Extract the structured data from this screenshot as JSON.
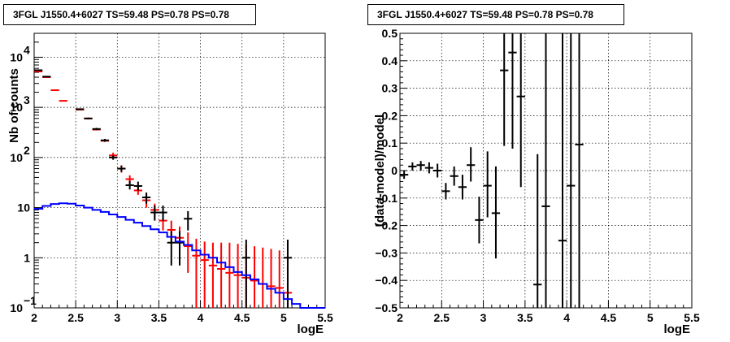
{
  "chart_data": [
    {
      "type": "line",
      "title": "3FGL J1550.4+6027 TS=59.48 PS=0.78 PS=0.78",
      "xlabel": "logE",
      "ylabel": "Nb of counts",
      "xlim": [
        2,
        5.5
      ],
      "ylim": [
        0.1,
        30000
      ],
      "yscale": "log",
      "grid": true,
      "x_ticks": [
        2,
        2.5,
        3,
        3.5,
        4,
        4.5,
        5,
        5.5
      ],
      "x_tick_labels": [
        "2",
        "2.5",
        "3",
        "3.5",
        "4",
        "4.5",
        "5",
        "5.5"
      ],
      "y_ticks": [
        0.1,
        1,
        10,
        100,
        1000,
        10000
      ],
      "series": [
        {
          "color": "#ff0000",
          "style": "errorbar",
          "bin_half_width": 0.05,
          "points": [
            {
              "x": 2.05,
              "y": 5200,
              "lo": 5200,
              "hi": 5200
            },
            {
              "x": 2.15,
              "y": 4000,
              "lo": 4000,
              "hi": 4000
            },
            {
              "x": 2.25,
              "y": 2200,
              "lo": 2200,
              "hi": 2200
            },
            {
              "x": 2.35,
              "y": 1350,
              "lo": 1350,
              "hi": 1350
            },
            {
              "x": 2.55,
              "y": 900,
              "lo": 900,
              "hi": 900
            },
            {
              "x": 2.65,
              "y": 600,
              "lo": 600,
              "hi": 600
            },
            {
              "x": 2.75,
              "y": 360,
              "lo": 360,
              "hi": 360
            },
            {
              "x": 2.85,
              "y": 215,
              "lo": 215,
              "hi": 215
            },
            {
              "x": 2.95,
              "y": 110,
              "lo": 95,
              "hi": 125
            },
            {
              "x": 3.05,
              "y": 60,
              "lo": 50,
              "hi": 70
            },
            {
              "x": 3.15,
              "y": 37,
              "lo": 31,
              "hi": 44
            },
            {
              "x": 3.25,
              "y": 22,
              "lo": 18,
              "hi": 27
            },
            {
              "x": 3.35,
              "y": 14,
              "lo": 10,
              "hi": 18
            },
            {
              "x": 3.45,
              "y": 9,
              "lo": 6,
              "hi": 12
            },
            {
              "x": 3.55,
              "y": 5.5,
              "lo": 3.5,
              "hi": 8
            },
            {
              "x": 3.65,
              "y": 3.6,
              "lo": 2,
              "hi": 5.5
            },
            {
              "x": 3.75,
              "y": 2.5,
              "lo": 1.2,
              "hi": 4.2
            },
            {
              "x": 3.85,
              "y": 1.7,
              "lo": 0.5,
              "hi": 3.2
            },
            {
              "x": 3.95,
              "y": 1.1,
              "lo": 0.1,
              "hi": 2.4
            },
            {
              "x": 4.05,
              "y": 0.9,
              "lo": 0.1,
              "hi": 2.1
            },
            {
              "x": 4.15,
              "y": 0.7,
              "lo": 0.1,
              "hi": 2.0
            },
            {
              "x": 4.25,
              "y": 0.6,
              "lo": 0.1,
              "hi": 2.0
            },
            {
              "x": 4.35,
              "y": 0.5,
              "lo": 0.1,
              "hi": 2.0
            },
            {
              "x": 4.45,
              "y": 0.45,
              "lo": 0.1,
              "hi": 1.9
            },
            {
              "x": 4.55,
              "y": 0.4,
              "lo": 0.1,
              "hi": 1.8
            },
            {
              "x": 4.65,
              "y": 0.35,
              "lo": 0.1,
              "hi": 1.7
            },
            {
              "x": 4.75,
              "y": 0.3,
              "lo": 0.1,
              "hi": 1.6
            },
            {
              "x": 4.85,
              "y": 0.27,
              "lo": 0.1,
              "hi": 1.5
            },
            {
              "x": 4.95,
              "y": 0.25,
              "lo": 0.1,
              "hi": 1.4
            },
            {
              "x": 5.05,
              "y": 0.2,
              "lo": 0.1,
              "hi": 1.0
            }
          ]
        },
        {
          "color": "#000000",
          "style": "errorbar",
          "bin_half_width": 0.05,
          "points": [
            {
              "x": 2.05,
              "y": 5500,
              "lo": 5400,
              "hi": 5600
            },
            {
              "x": 2.15,
              "y": 4100,
              "lo": 4030,
              "hi": 4170
            },
            {
              "x": 2.55,
              "y": 920,
              "lo": 890,
              "hi": 950
            },
            {
              "x": 2.65,
              "y": 600,
              "lo": 575,
              "hi": 625
            },
            {
              "x": 2.75,
              "y": 370,
              "lo": 350,
              "hi": 390
            },
            {
              "x": 2.85,
              "y": 220,
              "lo": 205,
              "hi": 235
            },
            {
              "x": 2.95,
              "y": 100,
              "lo": 90,
              "hi": 110
            },
            {
              "x": 3.05,
              "y": 60,
              "lo": 52,
              "hi": 68
            },
            {
              "x": 3.15,
              "y": 28,
              "lo": 23,
              "hi": 34
            },
            {
              "x": 3.25,
              "y": 27,
              "lo": 22,
              "hi": 33
            },
            {
              "x": 3.35,
              "y": 16,
              "lo": 12,
              "hi": 20
            },
            {
              "x": 3.45,
              "y": 8,
              "lo": 5.5,
              "hi": 11
            },
            {
              "x": 3.55,
              "y": 8,
              "lo": 5.5,
              "hi": 11
            },
            {
              "x": 3.65,
              "y": 2,
              "lo": 0.7,
              "hi": 3.4
            },
            {
              "x": 3.75,
              "y": 2,
              "lo": 0.7,
              "hi": 3.4
            },
            {
              "x": 3.85,
              "y": 6,
              "lo": 3.5,
              "hi": 8.5
            },
            {
              "x": 4.55,
              "y": 1,
              "lo": 0.1,
              "hi": 2.3
            },
            {
              "x": 5.05,
              "y": 1,
              "lo": 0.1,
              "hi": 2.3
            }
          ]
        },
        {
          "color": "#0000ff",
          "style": "step",
          "bin_half_width": 0.05,
          "points": [
            {
              "x": 2.05,
              "y": 9.5
            },
            {
              "x": 2.15,
              "y": 10.8
            },
            {
              "x": 2.25,
              "y": 11.8
            },
            {
              "x": 2.35,
              "y": 12.2
            },
            {
              "x": 2.45,
              "y": 12.0
            },
            {
              "x": 2.55,
              "y": 11.0
            },
            {
              "x": 2.65,
              "y": 10.0
            },
            {
              "x": 2.75,
              "y": 9.0
            },
            {
              "x": 2.85,
              "y": 8.2
            },
            {
              "x": 2.95,
              "y": 7.3
            },
            {
              "x": 3.05,
              "y": 6.5
            },
            {
              "x": 3.15,
              "y": 5.7
            },
            {
              "x": 3.25,
              "y": 5.0
            },
            {
              "x": 3.35,
              "y": 4.3
            },
            {
              "x": 3.45,
              "y": 3.7
            },
            {
              "x": 3.55,
              "y": 3.2
            },
            {
              "x": 3.65,
              "y": 2.6
            },
            {
              "x": 3.75,
              "y": 2.1
            },
            {
              "x": 3.85,
              "y": 1.8
            },
            {
              "x": 3.95,
              "y": 1.4
            },
            {
              "x": 4.05,
              "y": 1.15
            },
            {
              "x": 4.15,
              "y": 1.0
            },
            {
              "x": 4.25,
              "y": 0.8
            },
            {
              "x": 4.35,
              "y": 0.65
            },
            {
              "x": 4.45,
              "y": 0.52
            },
            {
              "x": 4.55,
              "y": 0.45
            },
            {
              "x": 4.65,
              "y": 0.37
            },
            {
              "x": 4.75,
              "y": 0.3
            },
            {
              "x": 4.85,
              "y": 0.24
            },
            {
              "x": 4.95,
              "y": 0.2
            },
            {
              "x": 5.05,
              "y": 0.15
            },
            {
              "x": 5.15,
              "y": 0.12
            },
            {
              "x": 5.25,
              "y": 0.1
            },
            {
              "x": 5.35,
              "y": 0.1
            },
            {
              "x": 5.45,
              "y": 0.1
            }
          ]
        }
      ]
    },
    {
      "type": "scatter",
      "title": "3FGL J1550.4+6027 TS=59.48 PS=0.78 PS=0.78",
      "xlabel": "logE",
      "ylabel": "(data-model)/model",
      "xlim": [
        2,
        5.5
      ],
      "ylim": [
        -0.5,
        0.5
      ],
      "yscale": "linear",
      "grid": true,
      "x_ticks": [
        2,
        2.5,
        3,
        3.5,
        4,
        4.5,
        5,
        5.5
      ],
      "x_tick_labels": [
        "2",
        "2.5",
        "3",
        "3.5",
        "4",
        "4.5",
        "5",
        "5.5"
      ],
      "y_ticks": [
        -0.5,
        -0.4,
        -0.3,
        -0.2,
        -0.1,
        0,
        0.1,
        0.2,
        0.3,
        0.4,
        0.5
      ],
      "y_tick_labels": [
        "−0.5",
        "−0.4",
        "−0.3",
        "−0.2",
        "−0.1",
        "0",
        "0.1",
        "0.2",
        "0.3",
        "0.4",
        "0.5"
      ],
      "series": [
        {
          "color": "#000000",
          "style": "errorbar",
          "bin_half_width": 0.05,
          "points": [
            {
              "x": 2.05,
              "y": -0.015,
              "lo": -0.03,
              "hi": 0.0
            },
            {
              "x": 2.15,
              "y": 0.015,
              "lo": 0.0,
              "hi": 0.03
            },
            {
              "x": 2.25,
              "y": 0.02,
              "lo": 0.0,
              "hi": 0.035
            },
            {
              "x": 2.35,
              "y": 0.01,
              "lo": -0.01,
              "hi": 0.03
            },
            {
              "x": 2.45,
              "y": 0.0,
              "lo": -0.025,
              "hi": 0.025
            },
            {
              "x": 2.55,
              "y": -0.075,
              "lo": -0.105,
              "hi": -0.045
            },
            {
              "x": 2.65,
              "y": -0.02,
              "lo": -0.055,
              "hi": 0.015
            },
            {
              "x": 2.75,
              "y": -0.06,
              "lo": -0.105,
              "hi": -0.015
            },
            {
              "x": 2.85,
              "y": 0.02,
              "lo": -0.04,
              "hi": 0.085
            },
            {
              "x": 2.95,
              "y": -0.18,
              "lo": -0.265,
              "hi": -0.095
            },
            {
              "x": 3.05,
              "y": -0.055,
              "lo": -0.17,
              "hi": 0.07
            },
            {
              "x": 3.15,
              "y": -0.155,
              "lo": -0.32,
              "hi": 0.015
            },
            {
              "x": 3.25,
              "y": 0.365,
              "lo": 0.09,
              "hi": 0.5
            },
            {
              "x": 3.35,
              "y": 0.43,
              "lo": 0.08,
              "hi": 0.5
            },
            {
              "x": 3.45,
              "y": 0.27,
              "lo": -0.06,
              "hi": 0.5
            },
            {
              "x": 3.65,
              "y": -0.415,
              "lo": -0.5,
              "hi": 0.06
            },
            {
              "x": 3.75,
              "y": -0.13,
              "lo": -0.5,
              "hi": 0.5
            },
            {
              "x": 3.95,
              "y": -0.255,
              "lo": -0.5,
              "hi": 0.5
            },
            {
              "x": 4.05,
              "y": -0.055,
              "lo": -0.5,
              "hi": 0.5
            },
            {
              "x": 4.15,
              "y": 0.095,
              "lo": -0.5,
              "hi": 0.5
            }
          ]
        }
      ]
    }
  ]
}
